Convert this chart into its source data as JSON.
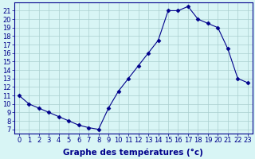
{
  "hours": [
    0,
    1,
    2,
    3,
    4,
    5,
    6,
    7,
    8,
    9,
    10,
    11,
    12,
    13,
    14,
    15,
    16,
    17,
    18,
    19,
    20,
    21,
    22,
    23
  ],
  "temps": [
    11,
    10,
    9.5,
    9,
    8.5,
    8,
    7.5,
    7.2,
    7,
    9.5,
    11.5,
    13,
    14.5,
    16,
    17.5,
    21,
    21,
    21.5,
    20,
    19.5,
    19,
    16.5,
    13,
    12.5
  ],
  "line_color": "#00008b",
  "marker": "D",
  "marker_size": 2.5,
  "bg_color": "#d8f5f5",
  "grid_color": "#aacfcf",
  "xlabel": "Graphe des températures (°c)",
  "ylabel_ticks": [
    7,
    8,
    9,
    10,
    11,
    12,
    13,
    14,
    15,
    16,
    17,
    18,
    19,
    20,
    21
  ],
  "xlim": [
    -0.5,
    23.5
  ],
  "ylim": [
    6.5,
    22
  ],
  "xticks": [
    0,
    1,
    2,
    3,
    4,
    5,
    6,
    7,
    8,
    9,
    10,
    11,
    12,
    13,
    14,
    15,
    16,
    17,
    18,
    19,
    20,
    21,
    22,
    23
  ],
  "axis_color": "#00008b",
  "tick_fontsize": 6,
  "xlabel_fontsize": 7.5
}
